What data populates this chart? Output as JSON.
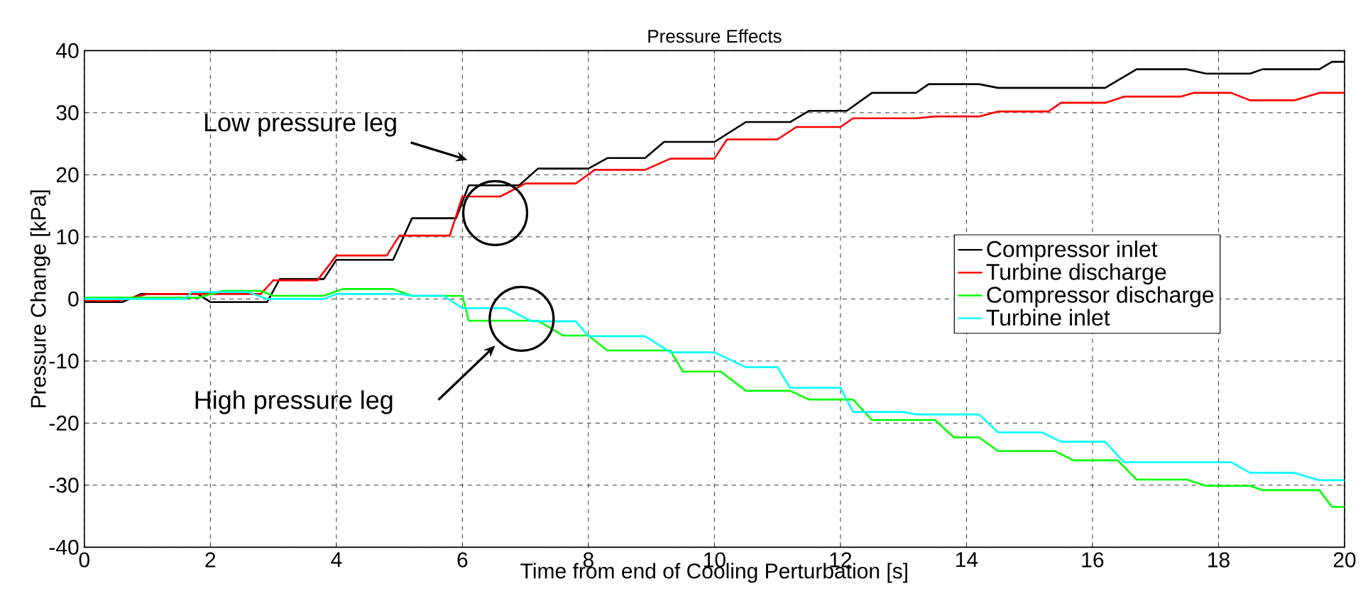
{
  "chart_data": {
    "type": "line",
    "title": "Pressure Effects",
    "xlabel": "Time from end of Cooling Perturbation [s]",
    "ylabel": "Pressure Change [kPa]",
    "xlim": [
      0,
      20
    ],
    "ylim": [
      -40,
      40
    ],
    "xticks": [
      0,
      2,
      4,
      6,
      8,
      10,
      12,
      14,
      16,
      18,
      20
    ],
    "yticks": [
      -40,
      -30,
      -20,
      -10,
      0,
      10,
      20,
      30,
      40
    ],
    "grid": true,
    "legend": "right",
    "line_style": "solid",
    "annotations": [
      "Low pressure leg",
      "High pressure leg"
    ],
    "series": [
      {
        "name": "Compressor inlet",
        "color": "#000000",
        "x": [
          0,
          0.6,
          0.9,
          1.8,
          2.0,
          2.9,
          3.1,
          3.8,
          4.0,
          4.9,
          5.2,
          5.9,
          6.1,
          6.9,
          7.2,
          8.0,
          8.3,
          8.9,
          9.2,
          10.0,
          10.5,
          11.2,
          11.5,
          12.1,
          12.5,
          13.2,
          13.4,
          14.2,
          14.5,
          16.2,
          16.7,
          17.5,
          17.8,
          18.5,
          18.7,
          19.6,
          19.8,
          20
        ],
        "values": [
          -0.5,
          -0.5,
          0.8,
          0.8,
          -0.5,
          -0.5,
          3.2,
          3.2,
          6.3,
          6.3,
          13,
          13,
          18.3,
          18.3,
          21,
          21,
          22.7,
          22.7,
          25.3,
          25.3,
          28.5,
          28.5,
          30.3,
          30.3,
          33.2,
          33.2,
          34.6,
          34.6,
          34,
          34,
          37,
          37,
          36.3,
          36.3,
          37,
          37,
          38.2,
          38.2
        ]
      },
      {
        "name": "Turbine discharge",
        "color": "#ff0000",
        "x": [
          0,
          0.5,
          0.8,
          1.0,
          2.8,
          3.0,
          3.7,
          4.0,
          4.8,
          5.0,
          5.8,
          6.0,
          6.6,
          7.0,
          7.8,
          8.1,
          8.9,
          9.3,
          10.0,
          10.2,
          11.0,
          11.3,
          12.0,
          12.2,
          13.2,
          13.5,
          14.2,
          14.5,
          15.3,
          15.5,
          16.2,
          16.5,
          17.4,
          17.6,
          18.2,
          18.5,
          19.2,
          19.6,
          20
        ],
        "values": [
          -0.3,
          -0.3,
          0.3,
          0.8,
          0.8,
          3,
          3,
          7,
          7,
          10.2,
          10.2,
          16.5,
          16.5,
          18.6,
          18.6,
          20.8,
          20.8,
          22.6,
          22.6,
          25.7,
          25.7,
          27.7,
          27.7,
          29.1,
          29.1,
          29.4,
          29.4,
          30.2,
          30.2,
          31.6,
          31.6,
          32.6,
          32.6,
          33.2,
          33.2,
          32,
          32,
          33.2,
          33.2
        ]
      },
      {
        "name": "Compressor discharge",
        "color": "#00ff00",
        "x": [
          0,
          1.8,
          2.2,
          2.8,
          3.0,
          3.8,
          4.1,
          4.9,
          5.2,
          6.0,
          6.1,
          7.2,
          7.6,
          8.0,
          8.3,
          9.3,
          9.5,
          10.1,
          10.5,
          11.2,
          11.5,
          12.2,
          12.5,
          13.5,
          13.8,
          14.2,
          14.5,
          15.4,
          15.7,
          16.4,
          16.7,
          17.5,
          17.8,
          18.5,
          18.7,
          19.6,
          19.8,
          20
        ],
        "values": [
          0.2,
          0.2,
          1.3,
          1.3,
          0.5,
          0.5,
          1.6,
          1.6,
          0.5,
          0.5,
          -3.5,
          -3.5,
          -5.9,
          -5.9,
          -8.3,
          -8.3,
          -11.7,
          -11.7,
          -14.8,
          -14.8,
          -16.2,
          -16.2,
          -19.5,
          -19.5,
          -22.3,
          -22.3,
          -24.5,
          -24.5,
          -26,
          -26,
          -29.1,
          -29.1,
          -30.1,
          -30.1,
          -30.8,
          -30.8,
          -33.5,
          -33.5
        ]
      },
      {
        "name": "Turbine inlet",
        "color": "#00ffff",
        "x": [
          0,
          1.6,
          1.7,
          2.6,
          2.9,
          3.8,
          4.0,
          5.0,
          5.2,
          5.7,
          6.0,
          6.7,
          7.1,
          7.8,
          8.0,
          8.9,
          9.3,
          10.0,
          10.5,
          11.0,
          11.2,
          12.0,
          12.2,
          13.0,
          13.2,
          14.2,
          14.5,
          15.2,
          15.5,
          16.2,
          16.5,
          18.2,
          18.5,
          19.2,
          19.6,
          20
        ],
        "values": [
          0,
          0,
          1.1,
          1.1,
          0,
          0,
          0.8,
          0.8,
          0.5,
          0.5,
          -1.5,
          -1.5,
          -3.6,
          -3.6,
          -6,
          -6,
          -8.6,
          -8.6,
          -11,
          -11,
          -14.3,
          -14.3,
          -18.2,
          -18.2,
          -18.6,
          -18.6,
          -21.5,
          -21.5,
          -23,
          -23,
          -26.3,
          -26.3,
          -28,
          -28,
          -29.2,
          -29.2
        ]
      }
    ]
  }
}
